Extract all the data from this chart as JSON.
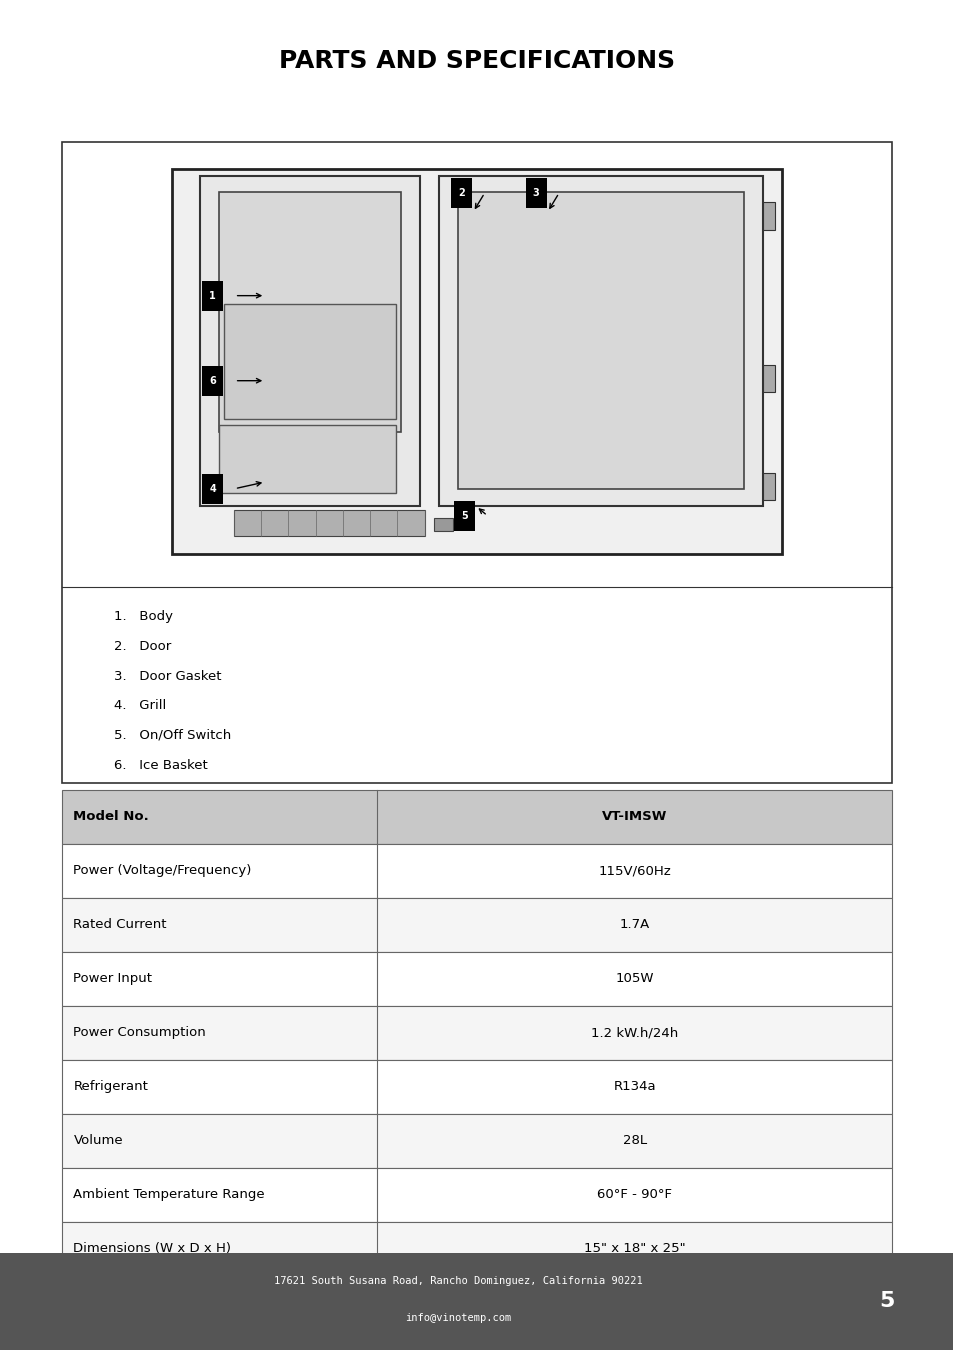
{
  "title": "PARTS AND SPECIFICATIONS",
  "title_fontsize": 18,
  "parts_list": [
    "1.   Body",
    "2.   Door",
    "3.   Door Gasket",
    "4.   Grill",
    "5.   On/Off Switch",
    "6.   Ice Basket"
  ],
  "specs_rows": [
    [
      "Model No.",
      "VT-IMSW"
    ],
    [
      "Power (Voltage/Frequency)",
      "115V/60Hz"
    ],
    [
      "Rated Current",
      "1.7A"
    ],
    [
      "Power Input",
      "105W"
    ],
    [
      "Power Consumption",
      "1.2 kW.h/24h"
    ],
    [
      "Refrigerant",
      "R134a"
    ],
    [
      "Volume",
      "28L"
    ],
    [
      "Ambient Temperature Range",
      "60°F - 90°F"
    ],
    [
      "Dimensions (W x D x H)",
      "15\" x 18\" x 25\""
    ]
  ],
  "header_row_color": "#c8c8c8",
  "alt_row_color": "#ffffff",
  "footer_text_line1": "17621 South Susana Road, Rancho Dominguez, California 90221",
  "footer_text_line2": "info@vinotemp.com",
  "footer_page": "5",
  "footer_bg_color": "#555555",
  "bg_color": "#ffffff",
  "border_color": "#000000",
  "text_color": "#000000",
  "label_numbers": [
    "1",
    "2",
    "3",
    "4",
    "5",
    "6"
  ]
}
